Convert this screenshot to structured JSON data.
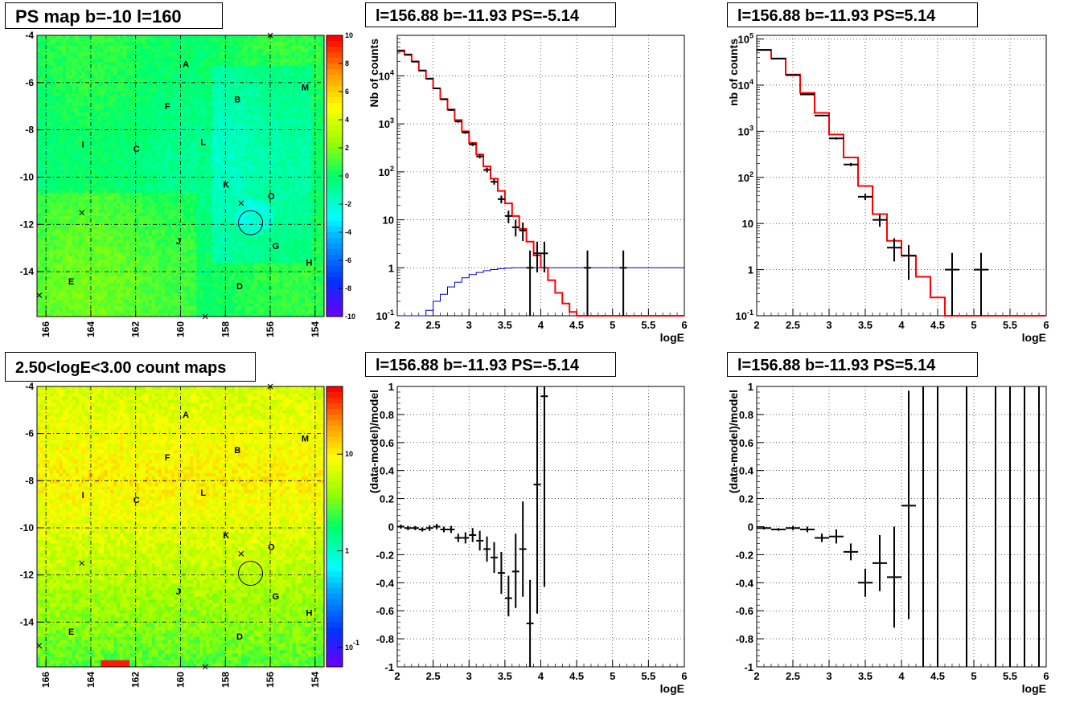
{
  "chart_data": [
    {
      "id": "psmap",
      "type": "heatmap",
      "title": "PS map b=-10 l=160",
      "x_ticks": [
        "166",
        "164",
        "162",
        "160",
        "158",
        "156",
        "154"
      ],
      "y_ticks": [
        "-4",
        "-6",
        "-8",
        "-10",
        "-12",
        "-14"
      ],
      "xlim": [
        166.4,
        153.6
      ],
      "ylim": [
        -15.9,
        -4
      ],
      "palette_ticks": [
        "10",
        "8",
        "6",
        "4",
        "2",
        "0",
        "-2",
        "-4",
        "-6",
        "-8",
        "-10"
      ],
      "palette_range": [
        -10,
        10
      ],
      "labels": [
        {
          "text": "A",
          "l": 159.8,
          "b": -5.2
        },
        {
          "text": "B",
          "l": 157.5,
          "b": -6.7
        },
        {
          "text": "M",
          "l": 154.5,
          "b": -6.2
        },
        {
          "text": "F",
          "l": 160.6,
          "b": -7.0
        },
        {
          "text": "I",
          "l": 164.3,
          "b": -8.6
        },
        {
          "text": "C",
          "l": 162.0,
          "b": -8.8
        },
        {
          "text": "L",
          "l": 159.0,
          "b": -8.5
        },
        {
          "text": "K",
          "l": 158.0,
          "b": -10.3
        },
        {
          "text": "O",
          "l": 156.0,
          "b": -10.8
        },
        {
          "text": "J",
          "l": 160.1,
          "b": -12.7
        },
        {
          "text": "G",
          "l": 155.8,
          "b": -12.9
        },
        {
          "text": "H",
          "l": 154.3,
          "b": -13.6
        },
        {
          "text": "E",
          "l": 164.9,
          "b": -14.4
        },
        {
          "text": "D",
          "l": 157.4,
          "b": -14.6
        }
      ],
      "crosses": [
        {
          "l": 156.0,
          "b": -4.0
        },
        {
          "l": 157.3,
          "b": -11.1
        },
        {
          "l": 164.4,
          "b": -11.5
        },
        {
          "l": 166.3,
          "b": -15.0
        },
        {
          "l": 158.9,
          "b": -15.9
        }
      ],
      "circle": {
        "l": 156.88,
        "b": -11.93
      }
    },
    {
      "id": "countmap",
      "type": "heatmap",
      "title": "2.50<logE<3.00 count maps",
      "x_ticks": [
        "166",
        "164",
        "162",
        "160",
        "158",
        "156",
        "154"
      ],
      "y_ticks": [
        "-4",
        "-6",
        "-8",
        "-10",
        "-12",
        "-14"
      ],
      "xlim": [
        166.4,
        153.6
      ],
      "ylim": [
        -15.9,
        -4
      ],
      "palette_ticks": [
        "10",
        "1",
        "10^-1"
      ],
      "palette_log_range": [
        -1.2,
        1.7
      ]
    },
    {
      "id": "spec1",
      "type": "line",
      "title": "l=156.88 b=-11.93 PS=-5.14",
      "xlabel": "logE",
      "ylabel": "Nb of counts",
      "xlim": [
        2,
        6
      ],
      "ylim": [
        0.1,
        70000
      ],
      "ylog": true,
      "x_ticks": [
        "2",
        "2.5",
        "3",
        "3.5",
        "4",
        "4.5",
        "5",
        "5.5",
        "6"
      ],
      "y_ticks": [
        {
          "v": 0.1,
          "t": "10^-1"
        },
        {
          "v": 1,
          "t": "1"
        },
        {
          "v": 10,
          "t": "10"
        },
        {
          "v": 100,
          "t": "10^2"
        },
        {
          "v": 1000,
          "t": "10^3"
        },
        {
          "v": 10000,
          "t": "10^4"
        }
      ],
      "bin_edges": [
        2.0,
        2.1,
        2.2,
        2.3,
        2.4,
        2.5,
        2.6,
        2.7,
        2.8,
        2.9,
        3.0,
        3.1,
        3.2,
        3.3,
        3.4,
        3.5,
        3.6,
        3.7,
        3.8,
        3.9,
        4.0,
        4.1,
        4.2,
        4.3,
        4.4,
        4.5,
        4.6,
        4.7,
        4.8,
        4.9,
        5.0,
        5.1,
        5.2,
        5.3,
        5.4,
        5.5,
        5.6,
        5.7,
        5.8,
        5.9,
        6.0
      ],
      "model": [
        34000,
        28000,
        20000,
        13000,
        8800,
        5500,
        3300,
        2000,
        1200,
        700,
        400,
        230,
        130,
        72,
        40,
        22,
        12,
        6.5,
        3.5,
        1.8,
        1.0,
        0.55,
        0.3,
        0.18,
        0.12,
        0.1,
        0.1,
        0.1,
        0.1,
        0.1,
        0.1,
        0.1,
        0.1,
        0.1,
        0.1,
        0.1,
        0.1,
        0.1,
        0.1,
        0.1
      ],
      "background": [
        0.1,
        0.1,
        0.1,
        0.1,
        0.13,
        0.2,
        0.28,
        0.4,
        0.5,
        0.62,
        0.72,
        0.8,
        0.87,
        0.92,
        0.96,
        0.98,
        1.0,
        1.0,
        1.0,
        1.0,
        1.0,
        1.0,
        1.0,
        1.0,
        1.0,
        1.0,
        1.0,
        1.0,
        1.0,
        1.0,
        1.0,
        1.0,
        1.0,
        1.0,
        1.0,
        1.0,
        1.0,
        1.0,
        1.0,
        1.0
      ],
      "points": [
        {
          "x": 2.05,
          "y": 33000,
          "lo": 32500,
          "hi": 33500,
          "xe": 0.05
        },
        {
          "x": 2.15,
          "y": 27500,
          "lo": 27000,
          "hi": 28000,
          "xe": 0.05
        },
        {
          "x": 2.25,
          "y": 19800,
          "lo": 19400,
          "hi": 20200,
          "xe": 0.05
        },
        {
          "x": 2.35,
          "y": 12900,
          "lo": 12600,
          "hi": 13200,
          "xe": 0.05
        },
        {
          "x": 2.45,
          "y": 8700,
          "lo": 8500,
          "hi": 8900,
          "xe": 0.05
        },
        {
          "x": 2.55,
          "y": 5500,
          "lo": 5350,
          "hi": 5650,
          "xe": 0.05
        },
        {
          "x": 2.65,
          "y": 3250,
          "lo": 3150,
          "hi": 3350,
          "xe": 0.05
        },
        {
          "x": 2.75,
          "y": 1950,
          "lo": 1870,
          "hi": 2030,
          "xe": 0.05
        },
        {
          "x": 2.85,
          "y": 1120,
          "lo": 1060,
          "hi": 1180,
          "xe": 0.05
        },
        {
          "x": 2.95,
          "y": 660,
          "lo": 620,
          "hi": 700,
          "xe": 0.05
        },
        {
          "x": 3.05,
          "y": 375,
          "lo": 345,
          "hi": 405,
          "xe": 0.05
        },
        {
          "x": 3.15,
          "y": 210,
          "lo": 190,
          "hi": 230,
          "xe": 0.05
        },
        {
          "x": 3.25,
          "y": 110,
          "lo": 97,
          "hi": 123,
          "xe": 0.05
        },
        {
          "x": 3.35,
          "y": 62,
          "lo": 54,
          "hi": 70,
          "xe": 0.05
        },
        {
          "x": 3.45,
          "y": 27,
          "lo": 22,
          "hi": 32,
          "xe": 0.05
        },
        {
          "x": 3.55,
          "y": 12,
          "lo": 8.5,
          "hi": 15.5,
          "xe": 0.05
        },
        {
          "x": 3.65,
          "y": 7,
          "lo": 4.5,
          "hi": 10,
          "xe": 0.05
        },
        {
          "x": 3.75,
          "y": 6,
          "lo": 3.6,
          "hi": 8.8,
          "xe": 0.05
        },
        {
          "x": 3.85,
          "y": 1,
          "lo": 0.1,
          "hi": 2.3,
          "xe": 0.05
        },
        {
          "x": 3.95,
          "y": 2,
          "lo": 0.8,
          "hi": 3.5,
          "xe": 0.05
        },
        {
          "x": 4.05,
          "y": 2,
          "lo": 0.8,
          "hi": 3.5,
          "xe": 0.05
        },
        {
          "x": 4.65,
          "y": 1,
          "lo": 0.1,
          "hi": 2.3,
          "xe": 0.05
        },
        {
          "x": 5.15,
          "y": 1,
          "lo": 0.1,
          "hi": 2.3,
          "xe": 0.05
        }
      ]
    },
    {
      "id": "spec2",
      "type": "line",
      "title": "l=156.88 b=-11.93 PS=5.14",
      "xlabel": "logE",
      "ylabel": "nb of counts",
      "xlim": [
        2,
        6
      ],
      "ylim": [
        0.1,
        120000
      ],
      "ylog": true,
      "x_ticks": [
        "2",
        "2.5",
        "3",
        "3.5",
        "4",
        "4.5",
        "5",
        "5.5",
        "6"
      ],
      "y_ticks": [
        {
          "v": 0.1,
          "t": "10^-1"
        },
        {
          "v": 1,
          "t": "1"
        },
        {
          "v": 10,
          "t": "10"
        },
        {
          "v": 100,
          "t": "10^2"
        },
        {
          "v": 1000,
          "t": "10^3"
        },
        {
          "v": 10000,
          "t": "10^4"
        },
        {
          "v": 100000,
          "t": "10^5"
        }
      ],
      "bin_edges": [
        2.0,
        2.2,
        2.4,
        2.6,
        2.8,
        3.0,
        3.2,
        3.4,
        3.6,
        3.8,
        4.0,
        4.2,
        4.4,
        4.6,
        4.8,
        5.0,
        5.2,
        5.4,
        5.6,
        5.8,
        6.0
      ],
      "model": [
        58000,
        38000,
        17000,
        6800,
        2500,
        850,
        270,
        65,
        16,
        4.2,
        2.0,
        0.7,
        0.25,
        0.1,
        0.1,
        0.1,
        0.1,
        0.1,
        0.1,
        0.1
      ],
      "points": [
        {
          "x": 2.1,
          "y": 58000,
          "lo": 57500,
          "hi": 58500,
          "xe": 0.1
        },
        {
          "x": 2.3,
          "y": 37500,
          "lo": 37000,
          "hi": 38000,
          "xe": 0.1
        },
        {
          "x": 2.5,
          "y": 16500,
          "lo": 16200,
          "hi": 16800,
          "xe": 0.1
        },
        {
          "x": 2.7,
          "y": 6300,
          "lo": 6150,
          "hi": 6450,
          "xe": 0.1
        },
        {
          "x": 2.9,
          "y": 2200,
          "lo": 2120,
          "hi": 2280,
          "xe": 0.1
        },
        {
          "x": 3.1,
          "y": 700,
          "lo": 660,
          "hi": 740,
          "xe": 0.1
        },
        {
          "x": 3.3,
          "y": 190,
          "lo": 175,
          "hi": 205,
          "xe": 0.1
        },
        {
          "x": 3.5,
          "y": 38,
          "lo": 32,
          "hi": 44,
          "xe": 0.1
        },
        {
          "x": 3.7,
          "y": 12,
          "lo": 8.5,
          "hi": 15.5,
          "xe": 0.1
        },
        {
          "x": 3.9,
          "y": 3,
          "lo": 1.5,
          "hi": 4.8,
          "xe": 0.1
        },
        {
          "x": 4.1,
          "y": 2,
          "lo": 0.6,
          "hi": 3.4,
          "xe": 0.1
        },
        {
          "x": 4.7,
          "y": 1,
          "lo": 0.1,
          "hi": 2.3,
          "xe": 0.1
        },
        {
          "x": 5.1,
          "y": 1,
          "lo": 0.1,
          "hi": 2.3,
          "xe": 0.1
        }
      ]
    },
    {
      "id": "resid1",
      "type": "scatter",
      "title": "l=156.88 b=-11.93 PS=-5.14",
      "xlabel": "logE",
      "ylabel": "(data-model)/model",
      "xlim": [
        2,
        6
      ],
      "ylim": [
        -1,
        1
      ],
      "x_ticks": [
        "2",
        "2.5",
        "3",
        "3.5",
        "4",
        "4.5",
        "5",
        "5.5",
        "6"
      ],
      "y_ticks": [
        "1",
        "0.8",
        "0.6",
        "0.4",
        "0.2",
        "0",
        "-0.2",
        "-0.4",
        "-0.6",
        "-0.8",
        "-1"
      ],
      "points": [
        {
          "x": 2.05,
          "y": 0.0,
          "lo": -0.015,
          "hi": 0.015,
          "xe": 0.05
        },
        {
          "x": 2.15,
          "y": -0.01,
          "lo": -0.025,
          "hi": 0.005,
          "xe": 0.05
        },
        {
          "x": 2.25,
          "y": -0.01,
          "lo": -0.025,
          "hi": 0.005,
          "xe": 0.05
        },
        {
          "x": 2.35,
          "y": -0.02,
          "lo": -0.035,
          "hi": -0.005,
          "xe": 0.05
        },
        {
          "x": 2.45,
          "y": -0.01,
          "lo": -0.03,
          "hi": 0.01,
          "xe": 0.05
        },
        {
          "x": 2.55,
          "y": 0.0,
          "lo": -0.02,
          "hi": 0.02,
          "xe": 0.05
        },
        {
          "x": 2.65,
          "y": -0.02,
          "lo": -0.04,
          "hi": 0.0,
          "xe": 0.05
        },
        {
          "x": 2.75,
          "y": -0.02,
          "lo": -0.045,
          "hi": 0.005,
          "xe": 0.05
        },
        {
          "x": 2.85,
          "y": -0.08,
          "lo": -0.11,
          "hi": -0.05,
          "xe": 0.05
        },
        {
          "x": 2.95,
          "y": -0.08,
          "lo": -0.12,
          "hi": -0.04,
          "xe": 0.05
        },
        {
          "x": 3.05,
          "y": -0.06,
          "lo": -0.11,
          "hi": -0.01,
          "xe": 0.05
        },
        {
          "x": 3.15,
          "y": -0.1,
          "lo": -0.17,
          "hi": -0.03,
          "xe": 0.05
        },
        {
          "x": 3.25,
          "y": -0.16,
          "lo": -0.25,
          "hi": -0.07,
          "xe": 0.05
        },
        {
          "x": 3.35,
          "y": -0.22,
          "lo": -0.33,
          "hi": -0.11,
          "xe": 0.05
        },
        {
          "x": 3.45,
          "y": -0.33,
          "lo": -0.48,
          "hi": -0.18,
          "xe": 0.05
        },
        {
          "x": 3.55,
          "y": -0.51,
          "lo": -0.64,
          "hi": -0.35,
          "xe": 0.05
        },
        {
          "x": 3.65,
          "y": -0.32,
          "lo": -0.58,
          "hi": -0.05,
          "xe": 0.05
        },
        {
          "x": 3.75,
          "y": -0.16,
          "lo": -0.5,
          "hi": 0.18,
          "xe": 0.05
        },
        {
          "x": 3.85,
          "y": -0.69,
          "lo": -1.0,
          "hi": -0.38,
          "xe": 0.05
        },
        {
          "x": 3.95,
          "y": 0.3,
          "lo": -0.62,
          "hi": 1.0,
          "xe": 0.05
        },
        {
          "x": 4.05,
          "y": 0.93,
          "lo": -0.43,
          "hi": 1.0,
          "xe": 0.05
        }
      ]
    },
    {
      "id": "resid2",
      "type": "scatter",
      "title": "l=156.88 b=-11.93 PS=5.14",
      "xlabel": "logE",
      "ylabel": "(data-model)/model",
      "xlim": [
        2,
        6
      ],
      "ylim": [
        -1,
        1
      ],
      "x_ticks": [
        "2",
        "2.5",
        "3",
        "3.5",
        "4",
        "4.5",
        "5",
        "5.5",
        "6"
      ],
      "y_ticks": [
        "1",
        "0.8",
        "0.6",
        "0.4",
        "0.2",
        "0",
        "-0.2",
        "-0.4",
        "-0.6",
        "-0.8",
        "-1"
      ],
      "points": [
        {
          "x": 2.1,
          "y": -0.01,
          "lo": -0.02,
          "hi": 0.0,
          "xe": 0.1
        },
        {
          "x": 2.3,
          "y": -0.02,
          "lo": -0.03,
          "hi": -0.01,
          "xe": 0.1
        },
        {
          "x": 2.5,
          "y": -0.01,
          "lo": -0.025,
          "hi": 0.005,
          "xe": 0.1
        },
        {
          "x": 2.7,
          "y": -0.02,
          "lo": -0.04,
          "hi": 0.0,
          "xe": 0.1
        },
        {
          "x": 2.9,
          "y": -0.08,
          "lo": -0.11,
          "hi": -0.05,
          "xe": 0.1
        },
        {
          "x": 3.1,
          "y": -0.07,
          "lo": -0.12,
          "hi": -0.02,
          "xe": 0.1
        },
        {
          "x": 3.3,
          "y": -0.18,
          "lo": -0.24,
          "hi": -0.12,
          "xe": 0.1
        },
        {
          "x": 3.5,
          "y": -0.4,
          "lo": -0.5,
          "hi": -0.3,
          "xe": 0.1
        },
        {
          "x": 3.7,
          "y": -0.26,
          "lo": -0.46,
          "hi": -0.06,
          "xe": 0.1
        },
        {
          "x": 3.9,
          "y": -0.36,
          "lo": -0.72,
          "hi": 0.0,
          "xe": 0.1
        },
        {
          "x": 4.1,
          "y": 0.15,
          "lo": -0.66,
          "hi": 0.97,
          "xe": 0.1
        },
        {
          "x": 4.3,
          "y": 0.0,
          "lo": -1.0,
          "hi": 1.0,
          "xe": 0
        },
        {
          "x": 4.5,
          "y": 0.0,
          "lo": -1.0,
          "hi": 1.0,
          "xe": 0
        },
        {
          "x": 4.9,
          "y": 0.0,
          "lo": -1.0,
          "hi": 1.0,
          "xe": 0
        },
        {
          "x": 5.3,
          "y": 0.0,
          "lo": -1.0,
          "hi": 1.0,
          "xe": 0
        },
        {
          "x": 5.5,
          "y": 0.0,
          "lo": -1.0,
          "hi": 1.0,
          "xe": 0
        },
        {
          "x": 5.7,
          "y": 0.0,
          "lo": -1.0,
          "hi": 1.0,
          "xe": 0
        },
        {
          "x": 5.9,
          "y": 0.0,
          "lo": -1.0,
          "hi": 1.0,
          "xe": 0
        }
      ]
    }
  ],
  "colors": {
    "model_line": "#ff0000",
    "background_line": "#0000cc",
    "data_points": "#000000",
    "grid": "#000000",
    "circle": "#000000"
  }
}
